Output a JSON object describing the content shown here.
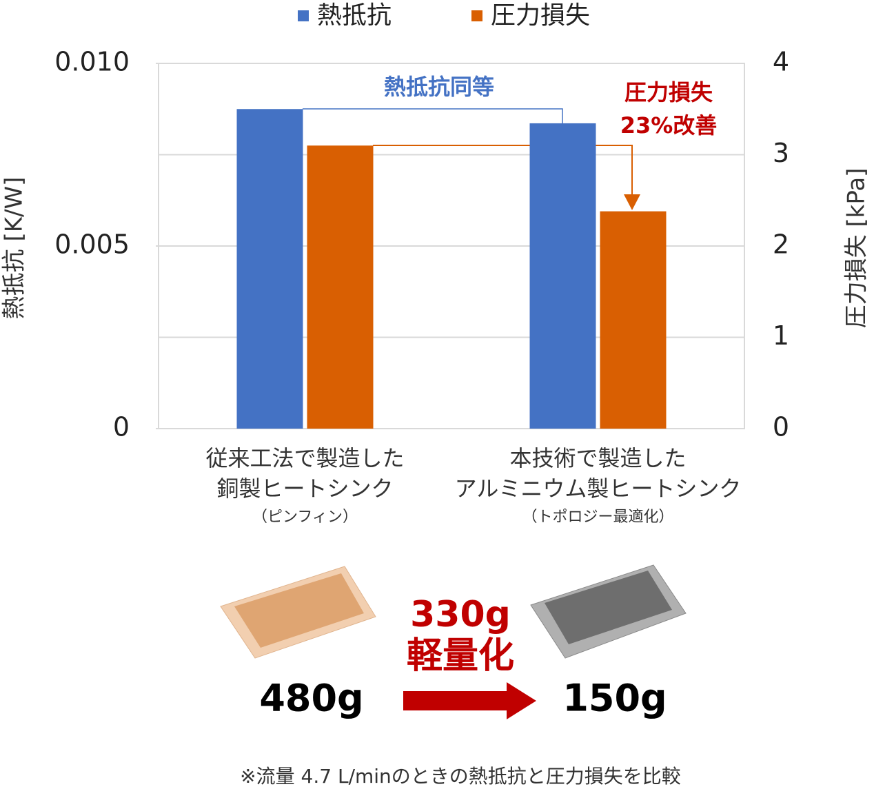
{
  "chart_data": {
    "type": "bar",
    "legend_position": "top",
    "categories": [
      [
        "従来工法で製造した",
        "銅製ヒートシンク"
      ],
      [
        "本技術で製造した",
        "アルミニウム製ヒートシンク"
      ]
    ],
    "category_notes": [
      "（ピンフィン）",
      "（トポロジー最適化）"
    ],
    "series": [
      {
        "name": "熱抵抗",
        "color": "#4472c4",
        "values": [
          0.00875,
          0.00836
        ]
      },
      {
        "name": "圧力損失",
        "color": "#d95f02",
        "axis": "y2",
        "values": [
          3.1,
          2.38
        ]
      }
    ],
    "ylabel": "熱抵抗 [K/W]",
    "y2label": "圧力損失 [kPa]",
    "ylim": [
      0,
      0.01
    ],
    "yticks": [
      0,
      0.005,
      {
        "value": 0.01,
        "label": "0.010"
      }
    ],
    "y2lim": [
      0,
      4
    ],
    "y2ticks": [
      0,
      1,
      2,
      3,
      4
    ],
    "grid": true,
    "annotations": [
      "熱抵抗同等",
      "圧力損失",
      "23%改善"
    ]
  },
  "infographic": {
    "reduction": "330g",
    "reduction_label": "軽量化",
    "before": "480g",
    "after": "150g",
    "footnote": "※流量 4.7 L/minのときの熱抵抗と圧力損失を比較"
  }
}
